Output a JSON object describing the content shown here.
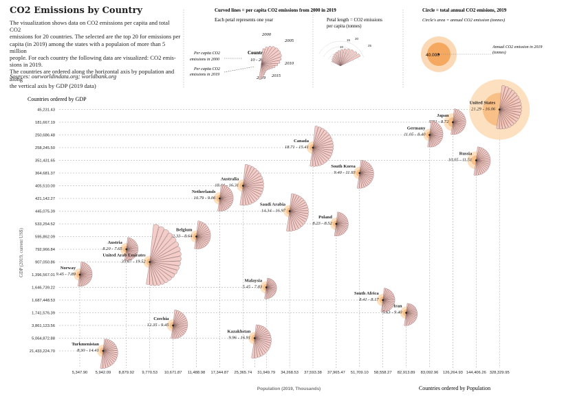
{
  "title": "CO2 Emissions by Country",
  "description": [
    "The visualization shows data on CO2 emissions per capita and total CO2",
    "emissions for 20 countries. The selected are the top 20 for emissions per",
    "capita (in 2019) among the states with a populaion of more than 5 million",
    "people. For each country the following data are visualized: CO2 emis-",
    "sions in 2019.",
    "The countries are ordered along the horizontal axis by population and along",
    "the vertical axis by GDP (2019 data)"
  ],
  "sources": "Sources: ourworldindata.org; worldbank.org",
  "legend": {
    "curved_title": "Curved lines = per capita CO2 emissions from 2000 in 2019",
    "petal_year": "Each petal represents one year",
    "year_2000": "2000",
    "year_2005": "2005",
    "year_2010": "2010",
    "year_2015": "2015",
    "year_2019": "2019",
    "country_label": "Country",
    "country_range": "10 - 20",
    "pc_2000_line1": "Per capita CO2",
    "pc_2000_line2": "emissions in 2000",
    "pc_2019_line1": "Per capita CO2",
    "pc_2019_line2": "emissions in 2019",
    "petal_length_line1": "Petal length = CO2  emissions",
    "petal_length_line2": "per capita (tonnes)",
    "arc_ticks": [
      "10",
      "15",
      "20",
      "25"
    ],
    "circle_title": "Circle = total annual CO2 emisions, 2019",
    "circle_sub": "Circle's area = annual CO2 emission (tonnes)",
    "circle_value": "40.000",
    "circle_note_line1": "Annual CO2 emission in 2019",
    "circle_note_line2": "(tonnes)"
  },
  "chart_data": {
    "type": "scatter",
    "title": "CO2 Emissions by Country",
    "ylabel": "GDP (2019, current US$)",
    "ylabel_top": "Countries ordered by GDP",
    "xlabel": "Population (2019, Thousands)",
    "xlabel_right": "Countries ordered by Population",
    "x_ticks": [
      "5,347.90",
      "5,942.09",
      "8,879.92",
      "9,770.53",
      "10,671.87",
      "11,488.98",
      "17,344.87",
      "25,365.74",
      "31,949.79",
      "34,268.53",
      "37,593.38",
      "37,965.47",
      "51,709.10",
      "58,558.27",
      "82,913.89",
      "83,092.96",
      "126,264.93",
      "144,406.26",
      "328,329.95"
    ],
    "y_ticks": [
      "21,433,224.70",
      "5,064,872.88",
      "3,861,123.56",
      "1,741,576.39",
      "1,687,448.53",
      "1,646,739.22",
      "1,396,567.01",
      "907,050.86",
      "792,966.84",
      "595,862.09",
      "533,254.52",
      "445,075.39",
      "421,142.27",
      "405,510.00",
      "364,681.37",
      "351,431.65",
      "258,245.50",
      "250,686.48",
      "181,667.19",
      "45,231.43"
    ],
    "countries": [
      {
        "name": "United States",
        "range": "21.29 - 16.06",
        "x_rank": 19,
        "y_rank": 20,
        "pc2000": 21.29,
        "pc2019": 16.06
      },
      {
        "name": "Japan",
        "range": "9.92 - 8.72",
        "x_rank": 17,
        "y_rank": 19,
        "pc2000": 9.92,
        "pc2019": 8.72
      },
      {
        "name": "Germany",
        "range": "11.05 - 8.40",
        "x_rank": 16,
        "y_rank": 18,
        "pc2000": 11.05,
        "pc2019": 8.4
      },
      {
        "name": "Canada",
        "range": "18.71 - 15.41",
        "x_rank": 11,
        "y_rank": 17,
        "pc2000": 18.71,
        "pc2019": 15.41
      },
      {
        "name": "Russia",
        "range": "10.05 - 11.51",
        "x_rank": 18,
        "y_rank": 16,
        "pc2000": 10.05,
        "pc2019": 11.51
      },
      {
        "name": "South Korea",
        "range": "9.40 - 11.93",
        "x_rank": 13,
        "y_rank": 15,
        "pc2000": 9.4,
        "pc2019": 11.93
      },
      {
        "name": "Australia",
        "range": "18.44 - 16.31",
        "x_rank": 8,
        "y_rank": 14,
        "pc2000": 18.44,
        "pc2019": 16.31
      },
      {
        "name": "Netherlands",
        "range": "10.79 - 9.06",
        "x_rank": 7,
        "y_rank": 13,
        "pc2000": 10.79,
        "pc2019": 9.06
      },
      {
        "name": "Saudi Arabia",
        "range": "14.34 - 16.97",
        "x_rank": 10,
        "y_rank": 12,
        "pc2000": 14.34,
        "pc2019": 16.97
      },
      {
        "name": "Poland",
        "range": "8.23 - 8.52",
        "x_rank": 12,
        "y_rank": 11,
        "pc2000": 8.23,
        "pc2019": 8.52
      },
      {
        "name": "Belgium",
        "range": "12.33 - 8.64",
        "x_rank": 6,
        "y_rank": 10,
        "pc2000": 12.33,
        "pc2019": 8.64
      },
      {
        "name": "Austria",
        "range": "8.20 - 7.65",
        "x_rank": 3,
        "y_rank": 9,
        "pc2000": 8.2,
        "pc2019": 7.65
      },
      {
        "name": "United Arab Emirates",
        "range": "35.67 - 19.52",
        "x_rank": 4,
        "y_rank": 8,
        "pc2000": 35.67,
        "pc2019": 19.52
      },
      {
        "name": "Norway",
        "range": "9.45 - 7.89",
        "x_rank": 1,
        "y_rank": 7,
        "pc2000": 9.45,
        "pc2019": 7.89
      },
      {
        "name": "Malaysia",
        "range": "5.45 - 7.83",
        "x_rank": 9,
        "y_rank": 6,
        "pc2000": 5.45,
        "pc2019": 7.83
      },
      {
        "name": "South Africa",
        "range": "8.41 - 8.17",
        "x_rank": 14,
        "y_rank": 5,
        "pc2000": 8.41,
        "pc2019": 8.17
      },
      {
        "name": "Iran",
        "range": "5.63 - 9.40",
        "x_rank": 15,
        "y_rank": 4,
        "pc2000": 5.63,
        "pc2019": 9.4
      },
      {
        "name": "Czechia",
        "range": "12.35 - 9.45",
        "x_rank": 5,
        "y_rank": 3,
        "pc2000": 12.35,
        "pc2019": 9.45
      },
      {
        "name": "Kazakhstan",
        "range": "9.96 - 16.91",
        "x_rank": 8.5,
        "y_rank": 2,
        "pc2000": 9.96,
        "pc2019": 16.91
      },
      {
        "name": "Turkmenistan",
        "range": "8.30 - 14.41",
        "x_rank": 2,
        "y_rank": 1,
        "pc2000": 8.3,
        "pc2019": 14.41
      }
    ],
    "colors": {
      "petal_fill": "#f2c4c0",
      "petal_stroke": "#7a5a5a",
      "circle_fill": "#f5a860",
      "circle_ring": "#fbd8b0",
      "grid": "#999999"
    }
  }
}
